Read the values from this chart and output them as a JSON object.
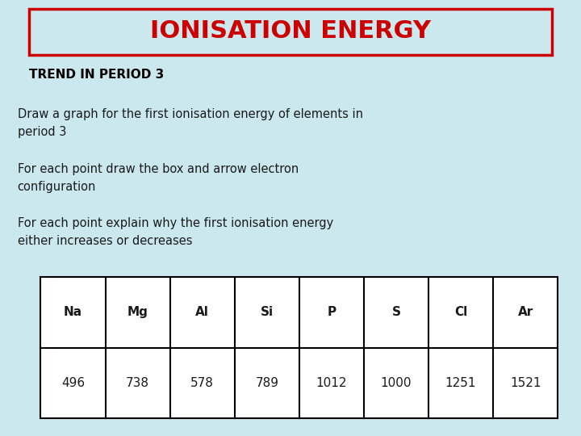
{
  "title": "IONISATION ENERGY",
  "subtitle": "TREND IN PERIOD 3",
  "paragraph1": "Draw a graph for the first ionisation energy of elements in\nperiod 3",
  "paragraph2": "For each point draw the box and arrow electron\nconfiguration",
  "paragraph3": "For each point explain why the first ionisation energy\neither increases or decreases",
  "table_headers": [
    "Na",
    "Mg",
    "Al",
    "Si",
    "P",
    "S",
    "Cl",
    "Ar"
  ],
  "table_values": [
    "496",
    "738",
    "578",
    "789",
    "1012",
    "1000",
    "1251",
    "1521"
  ],
  "bg_color": "#cce8ef",
  "title_color": "#cc0000",
  "title_bg": "#cce8ef",
  "title_border_color": "#cc0000",
  "body_text_color": "#1a1a1a",
  "subtitle_color": "#000000",
  "table_border_color": "#000000",
  "title_fontsize": 22,
  "subtitle_fontsize": 11,
  "body_fontsize": 10.5,
  "table_fontsize": 11
}
